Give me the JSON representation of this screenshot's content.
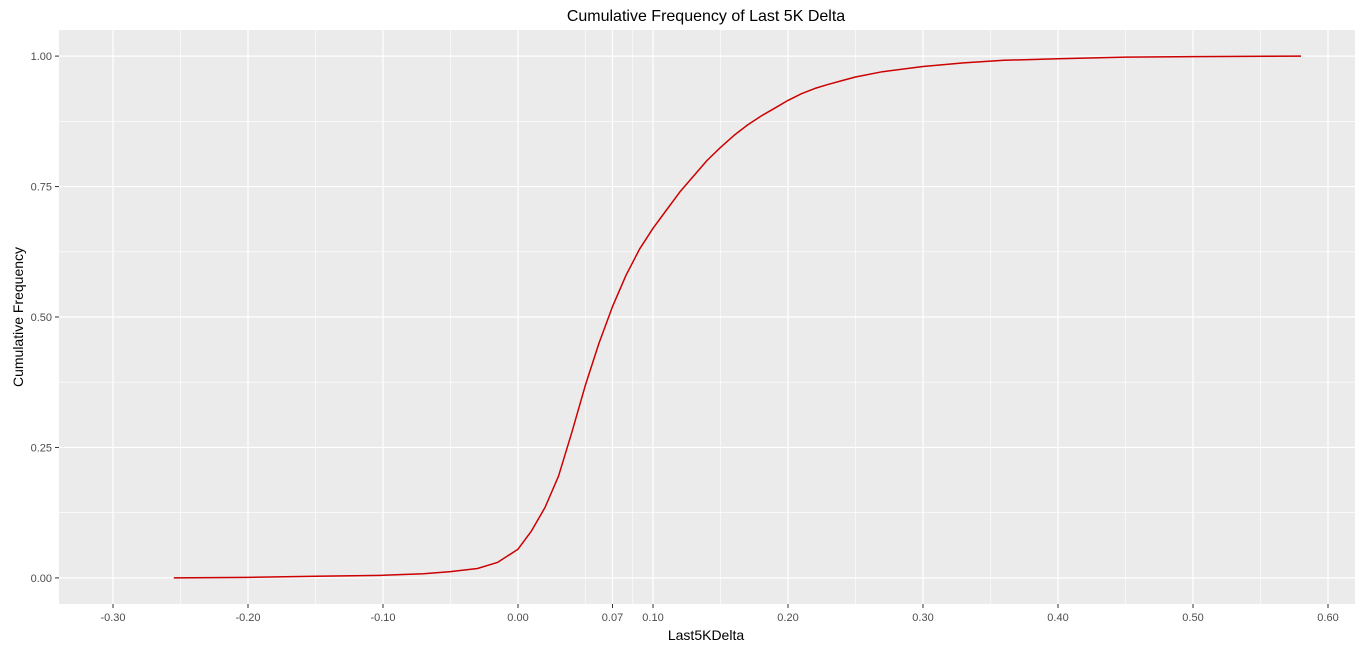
{
  "chart_data": {
    "type": "line",
    "title": "Cumulative Frequency of Last 5K Delta",
    "xlabel": "Last5KDelta",
    "ylabel": "Cumulative Frequency",
    "xlim": [
      -0.34,
      0.62
    ],
    "ylim": [
      -0.05,
      1.05
    ],
    "x_ticks": [
      {
        "value": -0.3,
        "label": "-0.30"
      },
      {
        "value": -0.2,
        "label": "-0.20"
      },
      {
        "value": -0.1,
        "label": "-0.10"
      },
      {
        "value": 0.0,
        "label": "0.00"
      },
      {
        "value": 0.07,
        "label": "0.07"
      },
      {
        "value": 0.1,
        "label": "0.10"
      },
      {
        "value": 0.2,
        "label": "0.20"
      },
      {
        "value": 0.3,
        "label": "0.30"
      },
      {
        "value": 0.4,
        "label": "0.40"
      },
      {
        "value": 0.5,
        "label": "0.50"
      },
      {
        "value": 0.6,
        "label": "0.60"
      }
    ],
    "x_minor_gridlines": [
      -0.25,
      -0.15,
      -0.05,
      0.05,
      0.085,
      0.15,
      0.25,
      0.35,
      0.45,
      0.55
    ],
    "y_ticks": [
      {
        "value": 0.0,
        "label": "0.00"
      },
      {
        "value": 0.25,
        "label": "0.25"
      },
      {
        "value": 0.5,
        "label": "0.50"
      },
      {
        "value": 0.75,
        "label": "0.75"
      },
      {
        "value": 1.0,
        "label": "1.00"
      }
    ],
    "y_minor_gridlines": [
      0.125,
      0.375,
      0.625,
      0.875
    ],
    "grid": true,
    "legend": "none",
    "colors": {
      "panel_background": "#ebebeb",
      "gridline": "#ffffff",
      "line": "#cc0000"
    },
    "series": [
      {
        "x": [
          -0.255,
          -0.2,
          -0.15,
          -0.1,
          -0.07,
          -0.05,
          -0.03,
          -0.015,
          0.0,
          0.01,
          0.02,
          0.03,
          0.04,
          0.05,
          0.06,
          0.07,
          0.08,
          0.09,
          0.1,
          0.11,
          0.12,
          0.13,
          0.14,
          0.15,
          0.16,
          0.17,
          0.18,
          0.19,
          0.2,
          0.21,
          0.22,
          0.23,
          0.24,
          0.25,
          0.27,
          0.3,
          0.33,
          0.36,
          0.4,
          0.45,
          0.5,
          0.58
        ],
        "y": [
          0.0,
          0.001,
          0.003,
          0.005,
          0.008,
          0.012,
          0.018,
          0.03,
          0.055,
          0.09,
          0.135,
          0.195,
          0.28,
          0.37,
          0.45,
          0.52,
          0.58,
          0.63,
          0.67,
          0.705,
          0.74,
          0.77,
          0.8,
          0.825,
          0.848,
          0.868,
          0.885,
          0.9,
          0.915,
          0.928,
          0.938,
          0.946,
          0.953,
          0.96,
          0.97,
          0.98,
          0.987,
          0.992,
          0.995,
          0.998,
          0.999,
          1.0
        ]
      }
    ]
  }
}
